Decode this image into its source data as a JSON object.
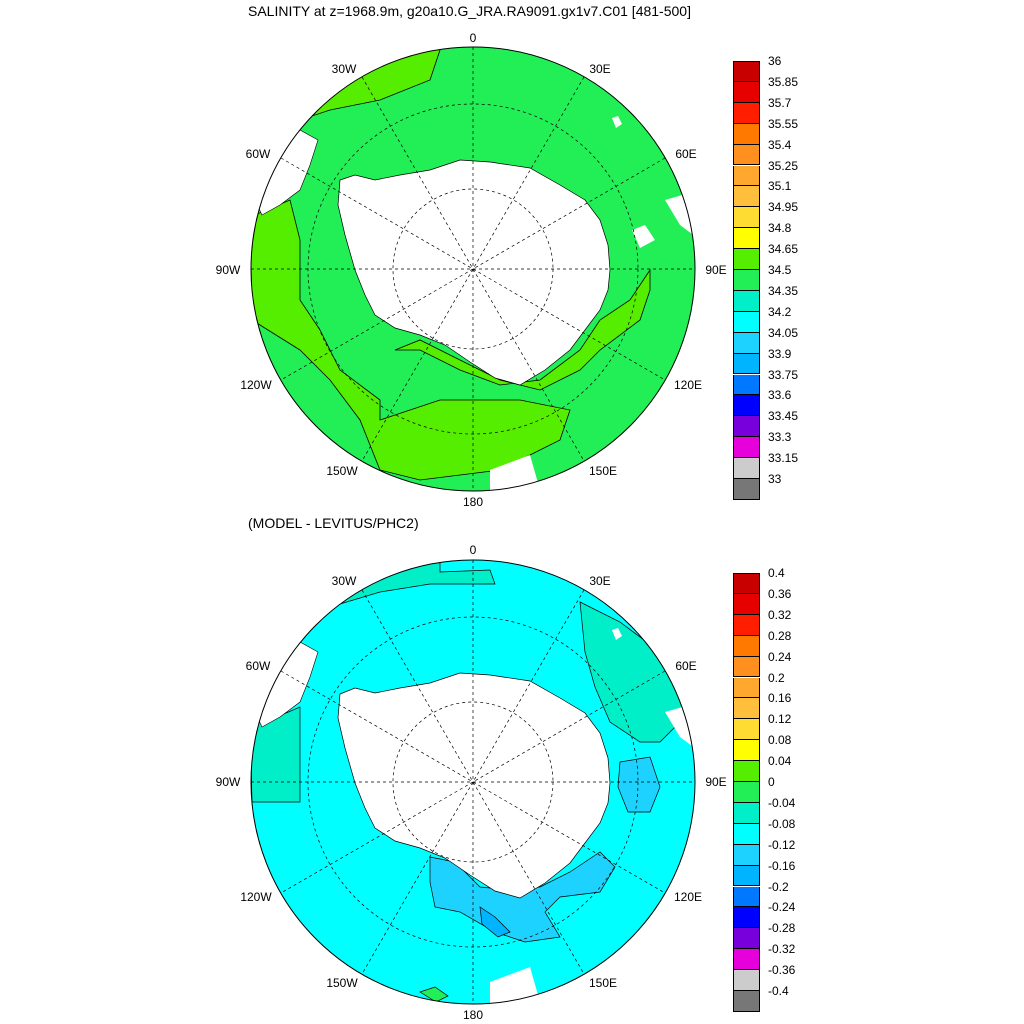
{
  "top_panel": {
    "title": "SALINITY at z=1968.9m, g20a10.G_JRA.RA9091.gx1v7.C01 [481-500]",
    "lon_labels": {
      "n": "0",
      "ne": "30E",
      "e60": "60E",
      "e": "90E",
      "e120": "120E",
      "e150": "150E",
      "s": "180",
      "w150": "150W",
      "w120": "120W",
      "w": "90W",
      "w60": "60W",
      "w30": "30W"
    },
    "dominant_fill": "#22ee22",
    "secondary_fill": "#55ee00",
    "colorbar": {
      "labels": [
        "36",
        "35.85",
        "35.7",
        "35.55",
        "35.4",
        "35.25",
        "35.1",
        "34.95",
        "34.8",
        "34.65",
        "34.5",
        "34.35",
        "34.2",
        "34.05",
        "33.9",
        "33.75",
        "33.6",
        "33.45",
        "33.3",
        "33.15",
        "33"
      ],
      "colors": [
        "#c80000",
        "#e60000",
        "#ff1e00",
        "#ff7800",
        "#ff9020",
        "#ffa830",
        "#ffbe3c",
        "#ffdc32",
        "#ffff00",
        "#55ee00",
        "#22ee55",
        "#00eec8",
        "#00ffff",
        "#1ed2ff",
        "#00b4ff",
        "#0078ff",
        "#0000ff",
        "#7800dc",
        "#e600dc",
        "#cccccc",
        "#777777"
      ]
    }
  },
  "bottom_panel": {
    "title": "(MODEL - LEVITUS/PHC2)",
    "lon_labels": {
      "n": "0",
      "ne": "30E",
      "e60": "60E",
      "e": "90E",
      "e120": "120E",
      "e150": "150E",
      "s": "180",
      "w150": "150W",
      "w120": "120W",
      "w": "90W",
      "w60": "60W",
      "w30": "30W"
    },
    "dominant_fill": "#00ffff",
    "secondary_fill": "#1ed2ff",
    "colorbar": {
      "labels": [
        "0.4",
        "0.36",
        "0.32",
        "0.28",
        "0.24",
        "0.2",
        "0.16",
        "0.12",
        "0.08",
        "0.04",
        "0",
        "-0.04",
        "-0.08",
        "-0.12",
        "-0.16",
        "-0.2",
        "-0.24",
        "-0.28",
        "-0.32",
        "-0.36",
        "-0.4"
      ],
      "colors": [
        "#c80000",
        "#e60000",
        "#ff1e00",
        "#ff7800",
        "#ff9020",
        "#ffa830",
        "#ffbe3c",
        "#ffdc32",
        "#ffff00",
        "#55ee00",
        "#22ee55",
        "#00eec8",
        "#00ffff",
        "#1ed2ff",
        "#00b4ff",
        "#0078ff",
        "#0000ff",
        "#7800dc",
        "#e600dc",
        "#cccccc",
        "#777777"
      ]
    }
  }
}
